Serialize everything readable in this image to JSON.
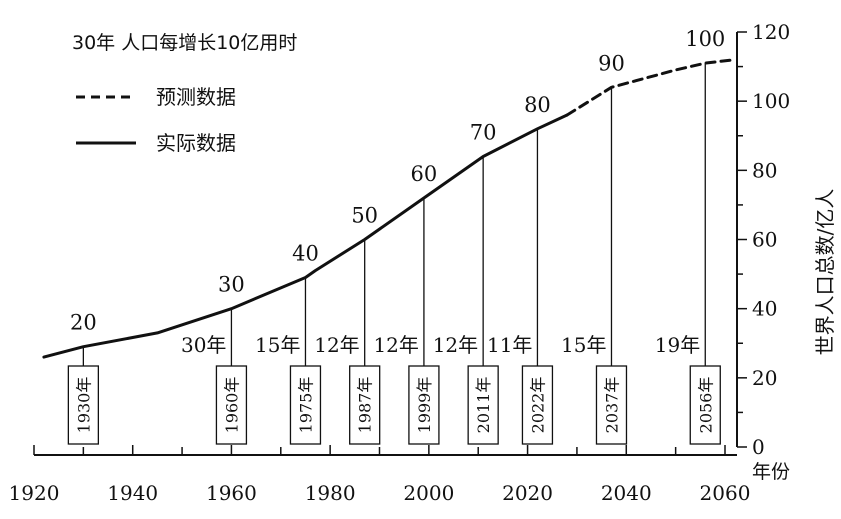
{
  "chart_data": {
    "type": "line",
    "title": "30年  人口每增长10亿用时",
    "xlabel": "年份",
    "ylabel": "世界人口总数/亿人",
    "xlim": [
      1920,
      2060
    ],
    "ylim": [
      0,
      120
    ],
    "x_ticks": [
      1920,
      1940,
      1960,
      1980,
      2000,
      2020,
      2040,
      2060
    ],
    "y_ticks": [
      0,
      20,
      40,
      60,
      80,
      100,
      120
    ],
    "grid": false,
    "legend": [
      {
        "name": "预测数据",
        "style": "dashed"
      },
      {
        "name": "实际数据",
        "style": "solid"
      }
    ],
    "series": [
      {
        "name": "实际数据",
        "style": "solid",
        "x": [
          1922,
          1930,
          1945,
          1960,
          1975,
          1977,
          1987,
          1999,
          2011,
          2022,
          2028
        ],
        "y": [
          26,
          29,
          33,
          40,
          49,
          51,
          60,
          72,
          84,
          92,
          96
        ]
      },
      {
        "name": "预测数据",
        "style": "dashed",
        "x": [
          2028,
          2037,
          2050,
          2056,
          2062
        ],
        "y": [
          96,
          104,
          109,
          111,
          112
        ]
      }
    ],
    "milestones": [
      {
        "year": 1930,
        "value": 20,
        "label": "20",
        "box": "1930年"
      },
      {
        "year": 1960,
        "value": 30,
        "label": "30",
        "box": "1960年"
      },
      {
        "year": 1975,
        "value": 40,
        "label": "40",
        "box": "1975年"
      },
      {
        "year": 1987,
        "value": 50,
        "label": "50",
        "box": "1987年"
      },
      {
        "year": 1999,
        "value": 60,
        "label": "60",
        "box": "1999年"
      },
      {
        "year": 2011,
        "value": 70,
        "label": "70",
        "box": "2011年"
      },
      {
        "year": 2022,
        "value": 80,
        "label": "80",
        "box": "2022年"
      },
      {
        "year": 2037,
        "value": 90,
        "label": "90",
        "box": "2037年"
      },
      {
        "year": 2056,
        "value": 100,
        "label": "100",
        "box": "2056年"
      }
    ],
    "intervals": [
      {
        "from": 1930,
        "to": 1960,
        "label": "30年"
      },
      {
        "from": 1960,
        "to": 1975,
        "label": "15年"
      },
      {
        "from": 1975,
        "to": 1987,
        "label": "12年"
      },
      {
        "from": 1987,
        "to": 1999,
        "label": "12年"
      },
      {
        "from": 1999,
        "to": 2011,
        "label": "12年"
      },
      {
        "from": 2011,
        "to": 2022,
        "label": "11年"
      },
      {
        "from": 2022,
        "to": 2037,
        "label": "15年"
      },
      {
        "from": 2037,
        "to": 2056,
        "label": "19年"
      }
    ]
  }
}
